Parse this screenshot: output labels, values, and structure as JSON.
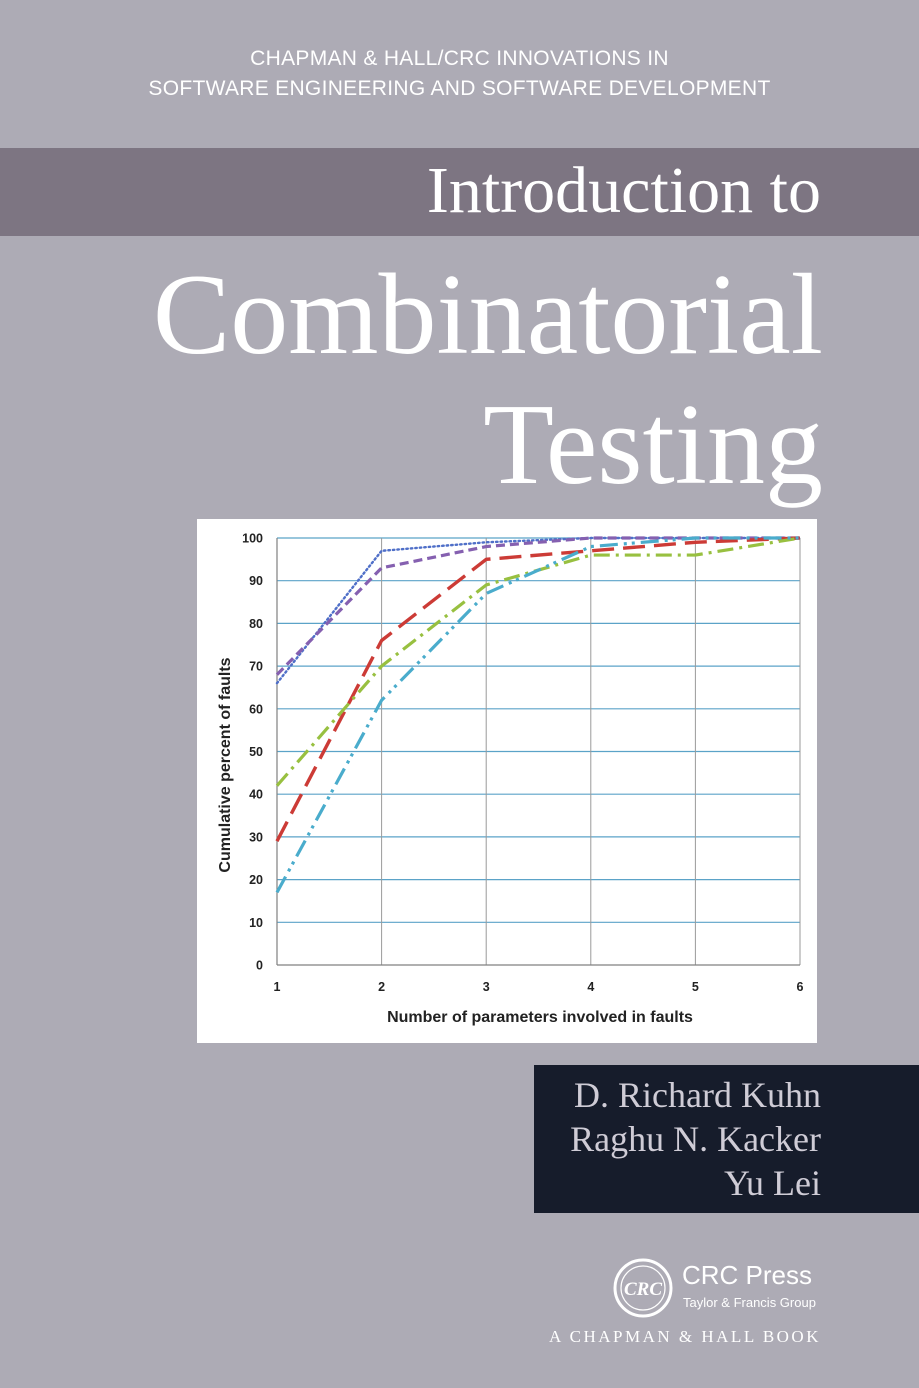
{
  "series": {
    "line1": "CHAPMAN & HALL/CRC INNOVATIONS IN",
    "line2": "SOFTWARE ENGINEERING AND SOFTWARE DEVELOPMENT"
  },
  "title": {
    "intro": "Introduction to",
    "line1": "Combinatorial",
    "line2": "Testing"
  },
  "authors": [
    "D. Richard Kuhn",
    "Raghu N. Kacker",
    "Yu Lei"
  ],
  "publisher": {
    "logo_text": "CRC",
    "name": "CRC Press",
    "group": "Taylor & Francis Group",
    "imprint": "A CHAPMAN & HALL BOOK"
  },
  "colors": {
    "background": "#adabb5",
    "band": "#7d7582",
    "author_panel": "#161c2b"
  },
  "chart_data": {
    "type": "line",
    "xlabel": "Number of parameters involved in faults",
    "ylabel": "Cumulative percent of faults",
    "x": [
      1,
      2,
      3,
      4,
      5,
      6
    ],
    "ylim": [
      0,
      100
    ],
    "yticks": [
      0,
      10,
      20,
      30,
      40,
      50,
      60,
      70,
      80,
      90,
      100
    ],
    "grid": true,
    "series": [
      {
        "color": "#4f6fc8",
        "style": "dotted",
        "values": [
          66,
          97,
          99,
          100,
          100,
          100
        ]
      },
      {
        "color": "#8560b0",
        "style": "dashed",
        "values": [
          68,
          93,
          98,
          100,
          100,
          100
        ]
      },
      {
        "color": "#cc3b36",
        "style": "longdash",
        "values": [
          29,
          76,
          95,
          97,
          99,
          100
        ]
      },
      {
        "color": "#98c040",
        "style": "dashdot",
        "values": [
          42,
          70,
          89,
          96,
          96,
          100
        ]
      },
      {
        "color": "#4aaccc",
        "style": "dashdotdot",
        "values": [
          17,
          62,
          87,
          98,
          100,
          100
        ]
      }
    ]
  }
}
